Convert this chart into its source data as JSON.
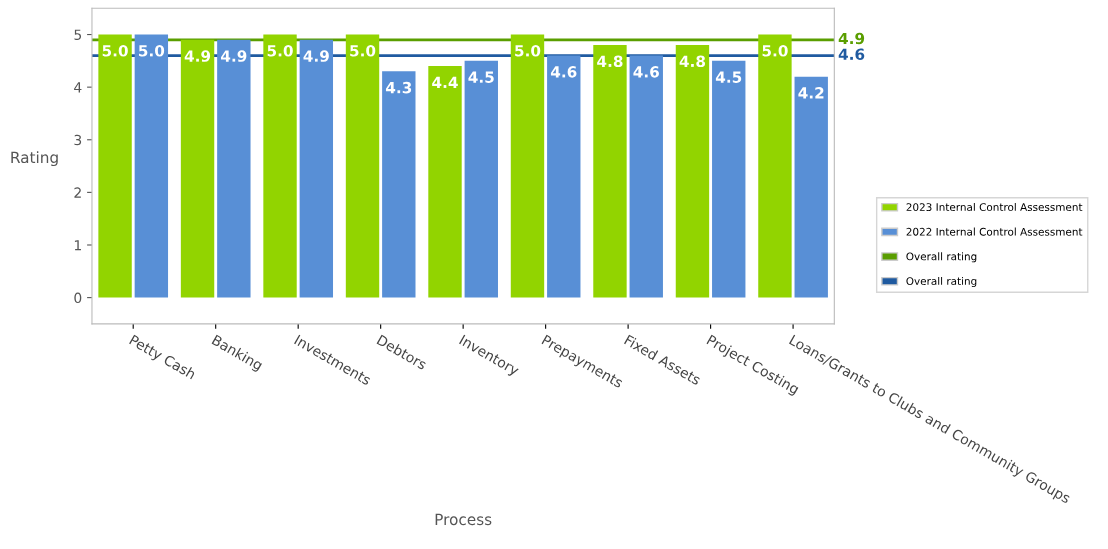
{
  "chart_data": {
    "type": "bar",
    "xlabel": "Process",
    "ylabel": "Rating",
    "categories": [
      "Petty Cash",
      "Banking",
      "Investments",
      "Debtors",
      "Inventory",
      "Prepayments",
      "Fixed Assets",
      "Project Costing",
      "Loans/Grants to Clubs and Community Groups"
    ],
    "series": [
      {
        "name": "2023 Internal Control Assessment",
        "color": "#92d400",
        "values": [
          5.0,
          4.9,
          5.0,
          5.0,
          4.4,
          5.0,
          4.8,
          4.8,
          5.0
        ],
        "value_labels": [
          "5.0",
          "4.9",
          "5.0",
          "5.0",
          "4.4",
          "5.0",
          "4.8",
          "4.8",
          "5.0"
        ]
      },
      {
        "name": "2022 Internal Control Assessment",
        "color": "#588fd6",
        "values": [
          5.0,
          4.9,
          4.9,
          4.3,
          4.5,
          4.6,
          4.6,
          4.5,
          4.2
        ],
        "value_labels": [
          "5.0",
          "4.9",
          "4.9",
          "4.3",
          "4.5",
          "4.6",
          "4.6",
          "4.5",
          "4.2"
        ]
      }
    ],
    "annotations": [
      "4.9",
      "4.6"
    ],
    "ylim": [
      -0.5,
      5.5
    ],
    "yticks": [
      0,
      1,
      2,
      3,
      4,
      5
    ],
    "ref_lines": [
      {
        "axis": "y",
        "value": 4.9,
        "label": "Overall rating",
        "color": "#5a9e00"
      },
      {
        "axis": "y",
        "value": 4.6,
        "label": "Overall rating",
        "color": "#1f5aa0"
      }
    ],
    "legend": "right",
    "grid": false
  }
}
